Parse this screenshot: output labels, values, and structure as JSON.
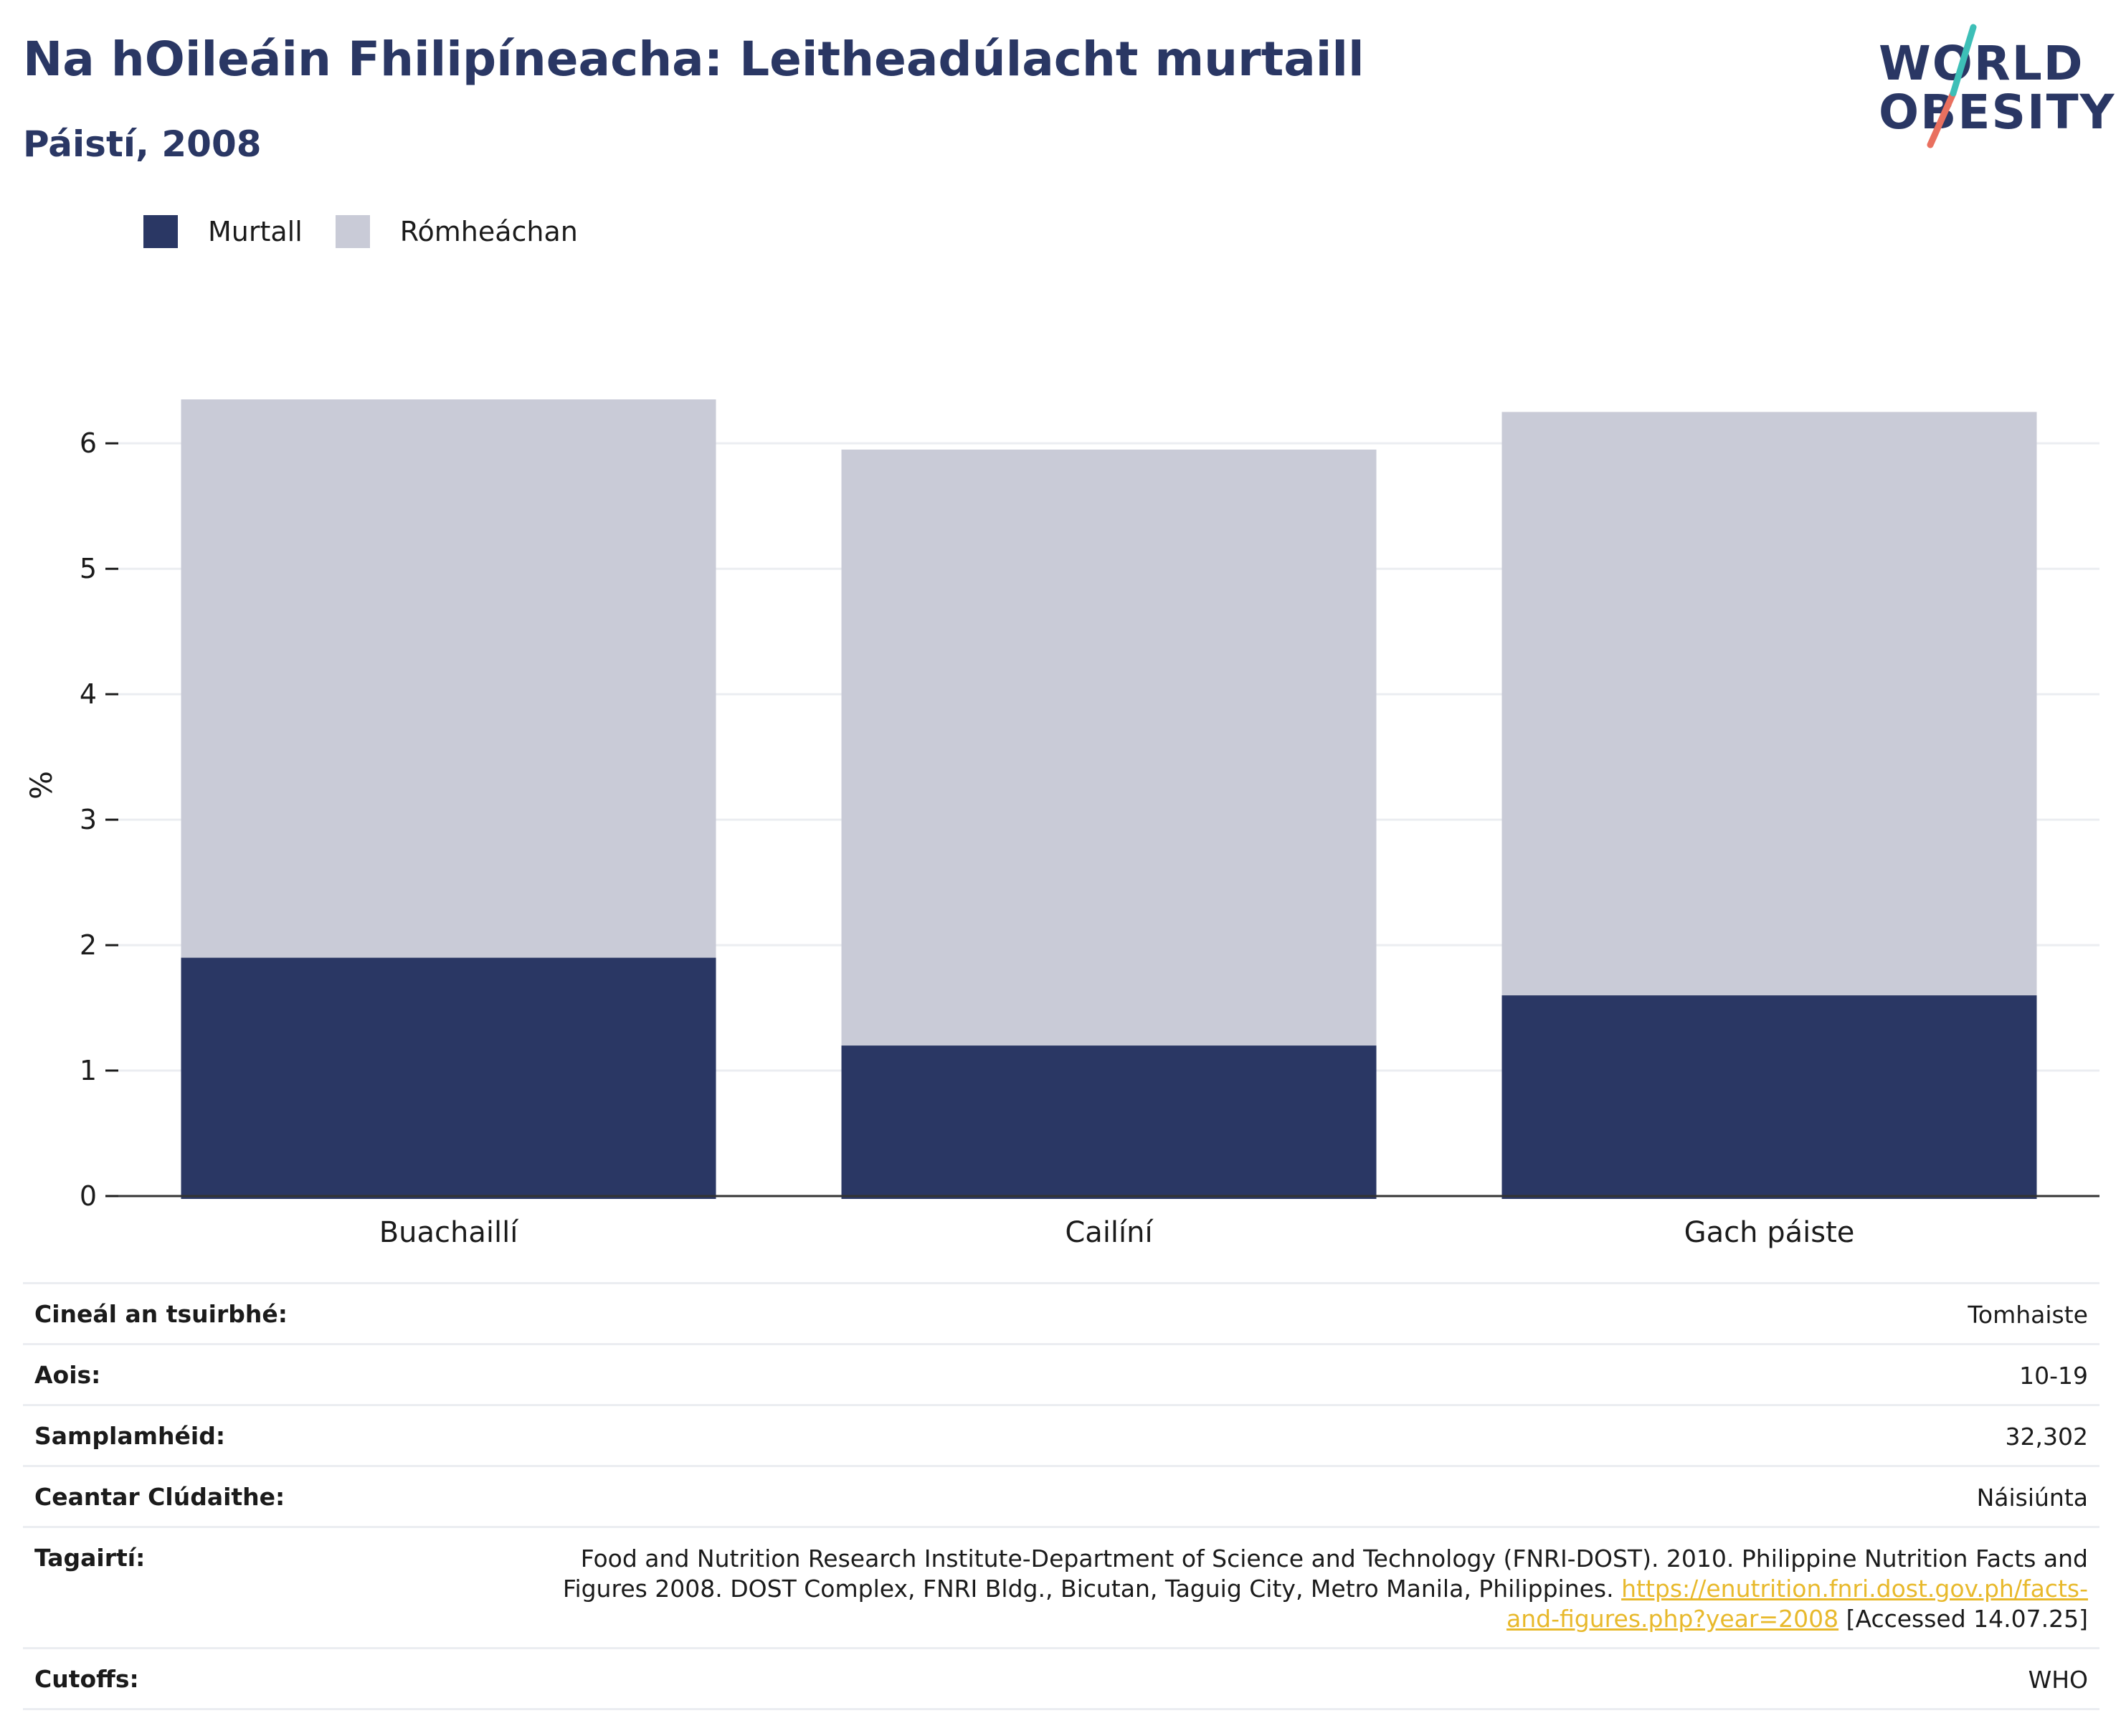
{
  "title": "Na hOileáin Fhilipíneacha: Leitheadúlacht murtaill",
  "subtitle": "Páistí, 2008",
  "logo": {
    "line1": "WORLD",
    "line2": "OBESITY"
  },
  "colors": {
    "obese": "#2a3764",
    "overweight": "#c9cbd7",
    "accent_teal": "#3dbfb7",
    "accent_coral": "#e9705f",
    "link": "#e8b92c"
  },
  "chart_data": {
    "type": "bar",
    "stacked": true,
    "categories": [
      "Buachaillí",
      "Cailíní",
      "Gach páiste"
    ],
    "series": [
      {
        "name": "Murtall",
        "values": [
          1.9,
          1.2,
          1.6
        ]
      },
      {
        "name": "Rómheáchan",
        "values": [
          4.45,
          4.75,
          4.65
        ]
      }
    ],
    "ylabel": "%",
    "xlabel": "",
    "ylim": [
      0,
      6.55
    ],
    "yticks": [
      0,
      1,
      2,
      3,
      4,
      5,
      6
    ],
    "grid": true,
    "legend_position": "top-left"
  },
  "meta": {
    "survey_type_label": "Cineál an tsuirbhé:",
    "survey_type_value": "Tomhaiste",
    "age_label": "Aois:",
    "age_value": "10-19",
    "sample_label": "Samplamhéid:",
    "sample_value": "32,302",
    "area_label": "Ceantar Clúdaithe:",
    "area_value": "Náisiúnta",
    "ref_label": "Tagairtí:",
    "ref_text": "Food and Nutrition Research Institute-Department of Science and Technology (FNRI-DOST). 2010. Philippine Nutrition Facts and Figures 2008. DOST Complex, FNRI Bldg., Bicutan, Taguig City, Metro Manila, Philippines. ",
    "ref_link": "https://enutrition.fnri.dost.gov.ph/facts-and-figures.php?year=2008",
    "ref_accessed": " [Accessed 14.07.25]",
    "cutoffs_label": "Cutoffs:",
    "cutoffs_value": "WHO"
  }
}
